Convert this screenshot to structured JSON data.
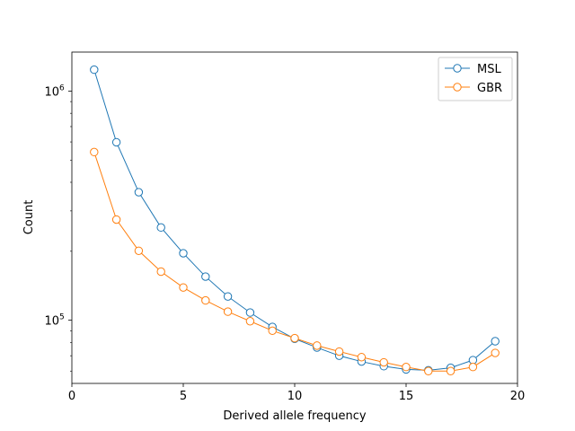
{
  "chart_data": {
    "type": "line",
    "title": "",
    "xlabel": "Derived allele frequency",
    "ylabel": "Count",
    "xlim": [
      0,
      20
    ],
    "ylim": [
      53000,
      1480000
    ],
    "yscale": "log",
    "grid": false,
    "legend_position": "top-right",
    "x": [
      1,
      2,
      3,
      4,
      5,
      6,
      7,
      8,
      9,
      10,
      11,
      12,
      13,
      14,
      15,
      16,
      17,
      18,
      19
    ],
    "x_ticks": [
      {
        "value": 0,
        "label": "0"
      },
      {
        "value": 5,
        "label": "5"
      },
      {
        "value": 10,
        "label": "10"
      },
      {
        "value": 15,
        "label": "15"
      },
      {
        "value": 20,
        "label": "20"
      }
    ],
    "y_ticks": [
      {
        "value": 100000,
        "base": "10",
        "exp": "5"
      },
      {
        "value": 1000000,
        "base": "10",
        "exp": "6"
      }
    ],
    "series": [
      {
        "name": "MSL",
        "color": "#1f77b4",
        "values": [
          1240000,
          598000,
          362000,
          254000,
          196000,
          155000,
          127000,
          108000,
          93500,
          83000,
          76000,
          70000,
          66000,
          63000,
          61000,
          60500,
          62000,
          67000,
          81000
        ]
      },
      {
        "name": "GBR",
        "color": "#ff7f0e",
        "values": [
          542000,
          275000,
          201000,
          163000,
          139000,
          122000,
          109000,
          99000,
          90000,
          83500,
          77500,
          73000,
          69000,
          65500,
          62500,
          60000,
          60000,
          62500,
          72000
        ]
      }
    ]
  }
}
